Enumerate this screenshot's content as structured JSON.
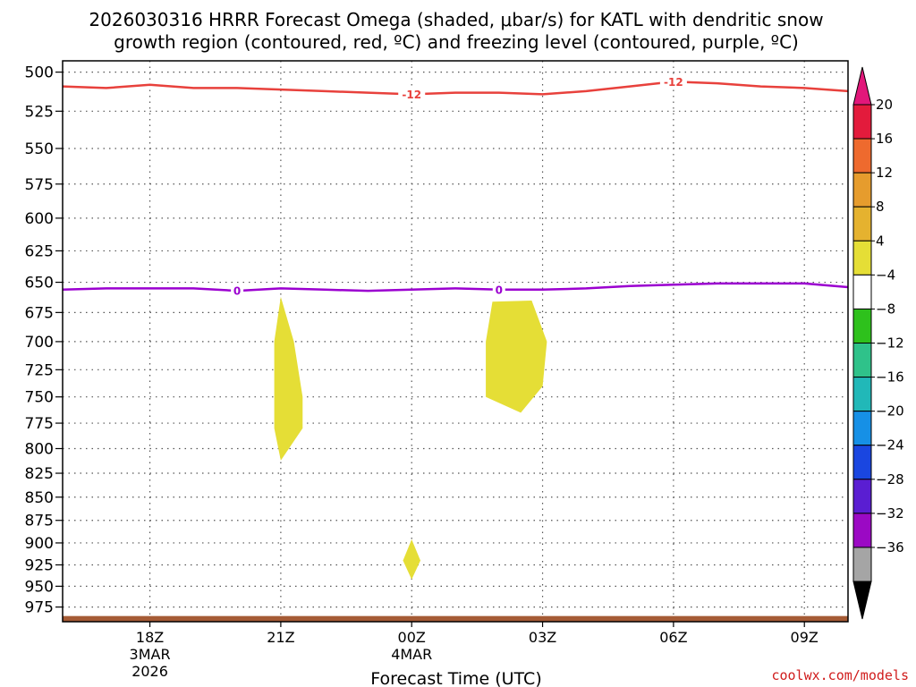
{
  "title_line1": "2026030316 HRRR Forecast Omega (shaded, μbar/s) for KATL with dendritic snow",
  "title_line2": "growth region (contoured, red, ºC) and freezing level (contoured, purple, ºC)",
  "credit": "coolwx.com/models",
  "chart_data": {
    "type": "time-height cross section",
    "xlabel": "Forecast Time (UTC)",
    "x_range_hours_after_16Z_3MAR": [
      0,
      18
    ],
    "x_ticks": [
      {
        "hour": 2,
        "label": "18Z",
        "sub1": "3MAR",
        "sub2": "2026"
      },
      {
        "hour": 5,
        "label": "21Z",
        "sub1": "",
        "sub2": ""
      },
      {
        "hour": 8,
        "label": "00Z",
        "sub1": "4MAR",
        "sub2": ""
      },
      {
        "hour": 11,
        "label": "03Z",
        "sub1": "",
        "sub2": ""
      },
      {
        "hour": 14,
        "label": "06Z",
        "sub1": "",
        "sub2": ""
      },
      {
        "hour": 17,
        "label": "09Z",
        "sub1": "",
        "sub2": ""
      }
    ],
    "y_axis": "pressure (hPa), log scale, inverted",
    "y_range": [
      493,
      993
    ],
    "y_ticks": [
      500,
      525,
      550,
      575,
      600,
      625,
      650,
      675,
      700,
      725,
      750,
      775,
      800,
      825,
      850,
      875,
      900,
      925,
      950,
      975
    ],
    "grid": true,
    "contours": [
      {
        "name": "dendritic snow growth region",
        "value": "-12",
        "color": "#e8413c",
        "points": [
          [
            0,
            509
          ],
          [
            1,
            510
          ],
          [
            2,
            508
          ],
          [
            3,
            510
          ],
          [
            4,
            510
          ],
          [
            5,
            511
          ],
          [
            6,
            512
          ],
          [
            7,
            513
          ],
          [
            8,
            514
          ],
          [
            9,
            513
          ],
          [
            10,
            513
          ],
          [
            11,
            514
          ],
          [
            12,
            512
          ],
          [
            13,
            509
          ],
          [
            14,
            506
          ],
          [
            15,
            507
          ],
          [
            16,
            509
          ],
          [
            17,
            510
          ],
          [
            18,
            512
          ]
        ],
        "labels_at_hours": [
          8,
          14
        ]
      },
      {
        "name": "freezing level",
        "value": "0",
        "color": "#9b00d0",
        "points": [
          [
            0,
            656
          ],
          [
            1,
            655
          ],
          [
            2,
            655
          ],
          [
            3,
            655
          ],
          [
            4,
            657
          ],
          [
            5,
            655
          ],
          [
            6,
            656
          ],
          [
            7,
            657
          ],
          [
            8,
            656
          ],
          [
            9,
            655
          ],
          [
            10,
            656
          ],
          [
            11,
            656
          ],
          [
            12,
            655
          ],
          [
            13,
            653
          ],
          [
            14,
            652
          ],
          [
            15,
            651
          ],
          [
            16,
            651
          ],
          [
            17,
            651
          ],
          [
            18,
            654
          ]
        ],
        "labels_at_hours": [
          4,
          10
        ]
      }
    ],
    "shaded_regions": [
      {
        "color": "#e5de36",
        "points": [
          [
            5,
            662
          ],
          [
            5.3,
            700
          ],
          [
            5.5,
            750
          ],
          [
            5.5,
            780
          ],
          [
            5,
            812
          ],
          [
            4.85,
            780
          ],
          [
            4.85,
            700
          ]
        ]
      },
      {
        "color": "#e5de36",
        "points": [
          [
            10.75,
            665
          ],
          [
            11.1,
            700
          ],
          [
            11,
            740
          ],
          [
            10.5,
            765
          ],
          [
            9.7,
            750
          ],
          [
            9.7,
            700
          ],
          [
            9.85,
            666
          ]
        ]
      },
      {
        "color": "#e5de36",
        "points": [
          [
            8,
            896
          ],
          [
            8.2,
            920
          ],
          [
            8,
            942
          ],
          [
            7.8,
            920
          ]
        ]
      }
    ],
    "terrain": {
      "color": "#a55b35",
      "pressure_top": 986
    },
    "colorbar": {
      "labels": [
        "20",
        "16",
        "12",
        "8",
        "4",
        "-4",
        "-8",
        "-12",
        "-16",
        "-20",
        "-24",
        "-28",
        "-32",
        "-36"
      ],
      "colors": [
        "#e31b3c",
        "#ee6a2e",
        "#e69c2d",
        "#e5b22f",
        "#e5de36",
        "#ffffff",
        "#2ec11c",
        "#2fc28a",
        "#21b8b8",
        "#1690e6",
        "#1a46e0",
        "#5a1ed2",
        "#9b09c4",
        "#a5a5a5"
      ],
      "top_color": "#e2177a",
      "bottom_color": "#000000"
    }
  }
}
